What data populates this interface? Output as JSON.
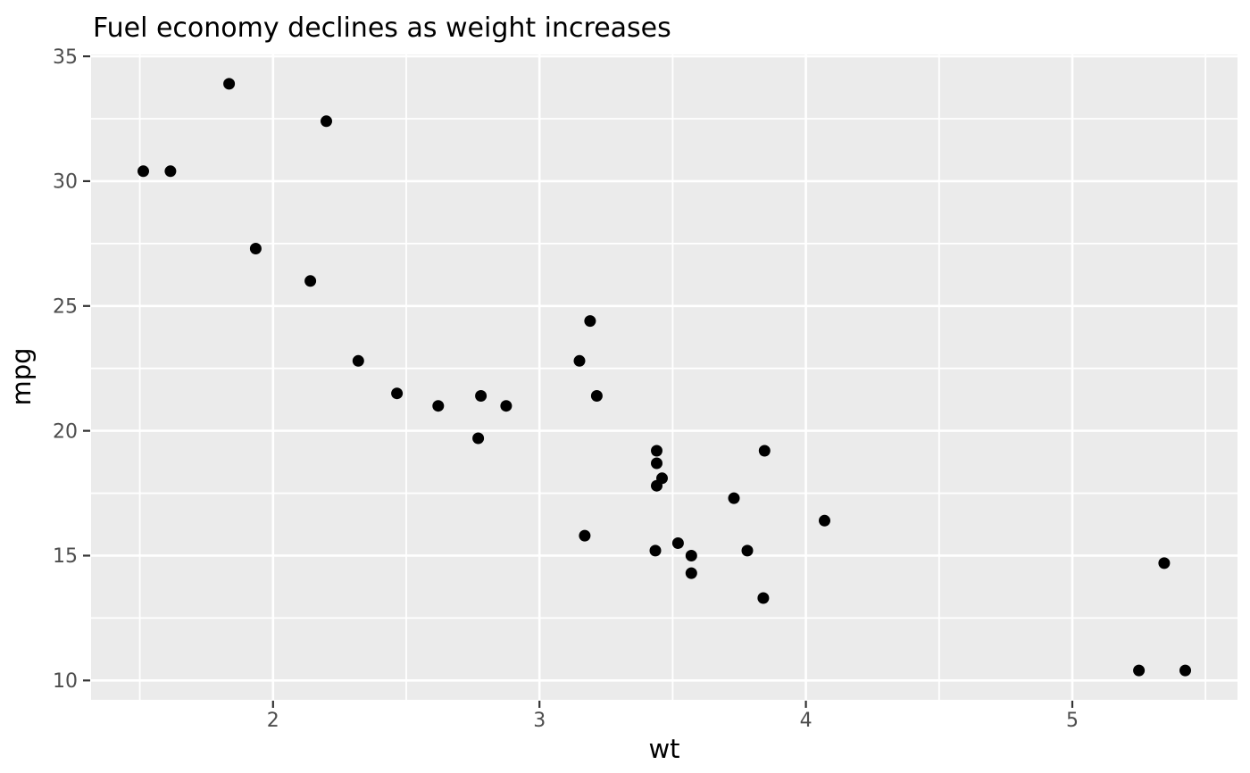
{
  "chart_data": {
    "type": "scatter",
    "title": "Fuel economy declines as weight increases",
    "xlabel": "wt",
    "ylabel": "mpg",
    "xlim": [
      1.317,
      5.62
    ],
    "ylim": [
      9.225,
      35.075
    ],
    "x_major_ticks": [
      2,
      3,
      4,
      5
    ],
    "y_major_ticks": [
      10,
      15,
      20,
      25,
      30,
      35
    ],
    "x_minor_ticks": [
      1.5,
      2.5,
      3.5,
      4.5,
      5.5
    ],
    "y_minor_ticks": [
      12.5,
      17.5,
      22.5,
      27.5,
      32.5
    ],
    "grid": true,
    "legend": false,
    "theme": "ggplot2-grey",
    "colors": {
      "panel_background": "#ebebeb",
      "grid_line": "#ffffff",
      "point": "#000000",
      "tick_mark": "#333333",
      "tick_label": "#4d4d4d",
      "title": "#000000",
      "axis_title": "#000000",
      "figure_background": "#ffffff"
    },
    "points": [
      [
        2.62,
        21.0
      ],
      [
        2.875,
        21.0
      ],
      [
        2.32,
        22.8
      ],
      [
        3.215,
        21.4
      ],
      [
        3.44,
        18.7
      ],
      [
        3.46,
        18.1
      ],
      [
        3.57,
        14.3
      ],
      [
        3.19,
        24.4
      ],
      [
        3.15,
        22.8
      ],
      [
        3.44,
        19.2
      ],
      [
        3.44,
        17.8
      ],
      [
        4.07,
        16.4
      ],
      [
        3.73,
        17.3
      ],
      [
        3.78,
        15.2
      ],
      [
        5.25,
        10.4
      ],
      [
        5.424,
        10.4
      ],
      [
        5.345,
        14.7
      ],
      [
        2.2,
        32.4
      ],
      [
        1.615,
        30.4
      ],
      [
        1.835,
        33.9
      ],
      [
        2.465,
        21.5
      ],
      [
        3.52,
        15.5
      ],
      [
        3.435,
        15.2
      ],
      [
        3.84,
        13.3
      ],
      [
        3.845,
        19.2
      ],
      [
        1.935,
        27.3
      ],
      [
        2.14,
        26.0
      ],
      [
        1.513,
        30.4
      ],
      [
        3.17,
        15.8
      ],
      [
        2.77,
        19.7
      ],
      [
        3.57,
        15.0
      ],
      [
        2.78,
        21.4
      ]
    ]
  }
}
